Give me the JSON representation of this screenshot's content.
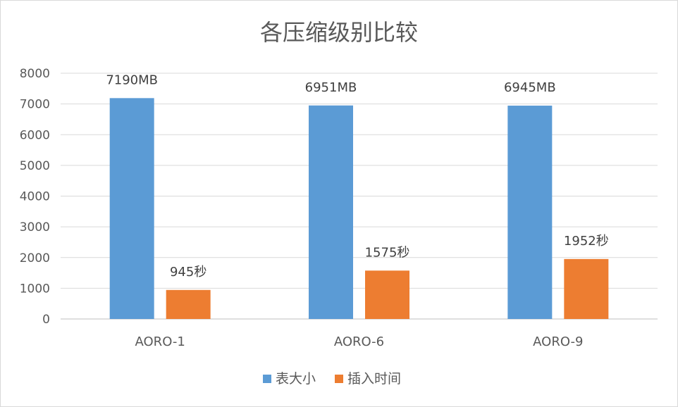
{
  "chart_data": {
    "type": "bar",
    "title": "各压缩级别比较",
    "categories": [
      "AORO-1",
      "AORO-6",
      "AORO-9"
    ],
    "series": [
      {
        "name": "表大小",
        "values": [
          7190,
          6951,
          6945
        ],
        "labels": [
          "7190MB",
          "6951MB",
          "6945MB"
        ],
        "color": "#5B9BD5"
      },
      {
        "name": "插入时间",
        "values": [
          945,
          1575,
          1952
        ],
        "labels": [
          "945秒",
          "1575秒",
          "1952秒"
        ],
        "color": "#ED7D31"
      }
    ],
    "ylim": [
      0,
      8000
    ],
    "yticks": [
      "0",
      "1000",
      "2000",
      "3000",
      "4000",
      "5000",
      "6000",
      "7000",
      "8000"
    ],
    "xlabel": "",
    "ylabel": "",
    "grid": true,
    "legend_position": "bottom"
  }
}
